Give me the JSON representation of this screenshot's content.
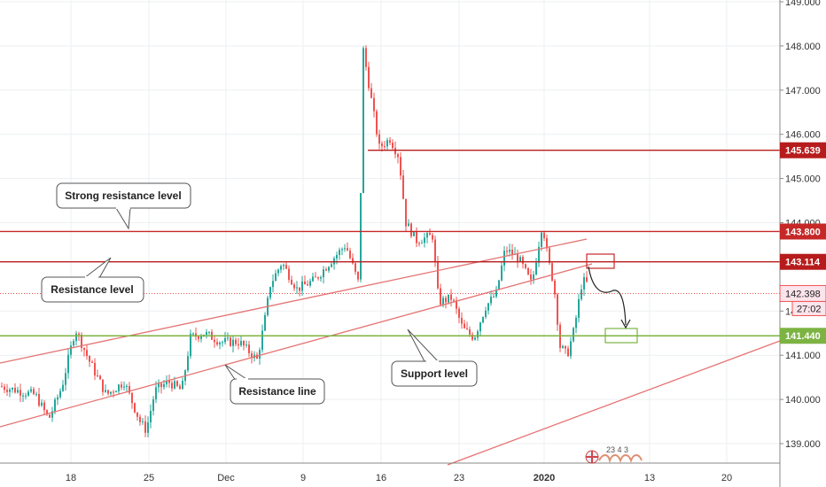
{
  "chart_data": {
    "type": "candlestick",
    "y_axis": {
      "ticks": [
        "149.000",
        "148.000",
        "147.000",
        "146.000",
        "145.000",
        "144.000",
        "142.000",
        "141.000",
        "140.000",
        "139.000"
      ],
      "min": 138.4,
      "max": 149.1,
      "grid": true
    },
    "x_axis": {
      "ticks": [
        "18",
        "25",
        "Dec",
        "9",
        "16",
        "23",
        "2020",
        "13",
        "20"
      ],
      "grid": true
    },
    "levels": [
      {
        "label": "145.639",
        "value": 145.639,
        "color": "#b71c1c",
        "kind": "segment"
      },
      {
        "label": "143.800",
        "value": 143.8,
        "color": "#c62828",
        "kind": "line"
      },
      {
        "label": "143.114",
        "value": 143.114,
        "color": "#b71c1c",
        "kind": "line"
      },
      {
        "label": "141.440",
        "value": 141.44,
        "color": "#7cb342",
        "kind": "line"
      }
    ],
    "current_price": {
      "label": "142.398",
      "value": 142.398,
      "countdown": "27:02",
      "color": "#ef5350"
    },
    "annotations": [
      {
        "text": "Strong resistance level"
      },
      {
        "text": "Resistance level"
      },
      {
        "text": "Resistance line"
      },
      {
        "text": "Support level"
      }
    ],
    "watermark_digits": "23 4  3",
    "colors": {
      "up": "#26a69a",
      "down": "#ef5350",
      "trendline": "#e57373",
      "support": "#7cb342",
      "resistance": "#c62828"
    }
  }
}
